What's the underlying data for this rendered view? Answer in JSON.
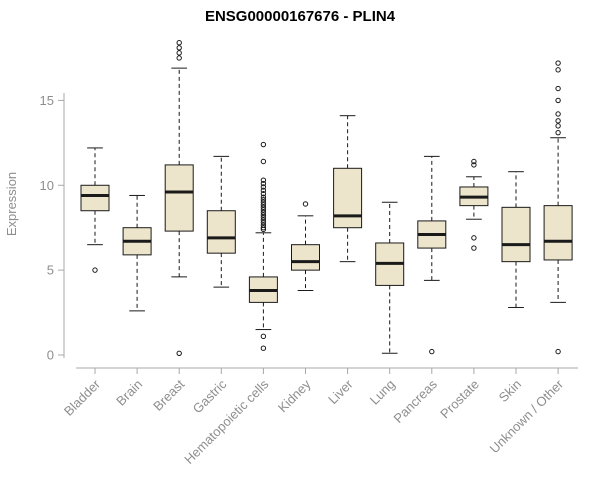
{
  "chart_data": {
    "type": "boxplot",
    "title": "ENSG00000167676 - PLIN4",
    "ylabel": "Expression",
    "ylim": [
      0,
      18.5
    ],
    "yticks": [
      0,
      5,
      10,
      15
    ],
    "grid": false,
    "legend": false,
    "colors": {
      "box_fill": "#EDE5CB",
      "box_stroke": "#1a1a1a",
      "axis": "#a8a8a8",
      "labels": "#8e8e8e",
      "title": "#000000"
    },
    "categories": [
      "Bladder",
      "Brain",
      "Breast",
      "Gastric",
      "Hematopoietic cells",
      "Kidney",
      "Liver",
      "Lung",
      "Pancreas",
      "Prostate",
      "Skin",
      "Unknown / Other"
    ],
    "series": [
      {
        "name": "Bladder",
        "whislo": 6.5,
        "q1": 8.5,
        "med": 9.4,
        "q3": 10.0,
        "whishi": 12.2,
        "fliers": [
          5.0
        ]
      },
      {
        "name": "Brain",
        "whislo": 2.6,
        "q1": 5.9,
        "med": 6.7,
        "q3": 7.5,
        "whishi": 9.4,
        "fliers": []
      },
      {
        "name": "Breast",
        "whislo": 4.6,
        "q1": 7.3,
        "med": 9.6,
        "q3": 11.2,
        "whishi": 16.9,
        "fliers": [
          18.4,
          18.1,
          17.8,
          17.5,
          0.1
        ]
      },
      {
        "name": "Gastric",
        "whislo": 4.0,
        "q1": 6.0,
        "med": 6.9,
        "q3": 8.5,
        "whishi": 11.7,
        "fliers": []
      },
      {
        "name": "Hematopoietic cells",
        "whislo": 1.5,
        "q1": 3.1,
        "med": 3.8,
        "q3": 4.6,
        "whishi": 7.2,
        "fliers": [
          12.4,
          11.4,
          10.3,
          10.1,
          9.9,
          9.7,
          9.5,
          9.3,
          9.15,
          9.0,
          8.85,
          8.7,
          8.55,
          8.4,
          8.25,
          8.1,
          7.95,
          7.8,
          7.65,
          7.5,
          7.4,
          1.1,
          0.4
        ]
      },
      {
        "name": "Kidney",
        "whislo": 3.8,
        "q1": 5.0,
        "med": 5.5,
        "q3": 6.5,
        "whishi": 8.2,
        "fliers": [
          8.9
        ]
      },
      {
        "name": "Liver",
        "whislo": 5.5,
        "q1": 7.5,
        "med": 8.2,
        "q3": 11.0,
        "whishi": 14.1,
        "fliers": []
      },
      {
        "name": "Lung",
        "whislo": 0.1,
        "q1": 4.1,
        "med": 5.4,
        "q3": 6.6,
        "whishi": 9.0,
        "fliers": []
      },
      {
        "name": "Pancreas",
        "whislo": 4.4,
        "q1": 6.3,
        "med": 7.1,
        "q3": 7.9,
        "whishi": 11.7,
        "fliers": [
          0.2
        ]
      },
      {
        "name": "Prostate",
        "whislo": 8.0,
        "q1": 8.8,
        "med": 9.3,
        "q3": 9.9,
        "whishi": 10.5,
        "fliers": [
          11.4,
          11.2,
          6.9,
          6.3
        ]
      },
      {
        "name": "Skin",
        "whislo": 2.8,
        "q1": 5.5,
        "med": 6.5,
        "q3": 8.7,
        "whishi": 10.8,
        "fliers": []
      },
      {
        "name": "Unknown / Other",
        "whislo": 3.1,
        "q1": 5.6,
        "med": 6.7,
        "q3": 8.8,
        "whishi": 12.8,
        "fliers": [
          17.2,
          16.8,
          15.7,
          15.0,
          14.2,
          13.8,
          13.5,
          13.1,
          0.2
        ]
      }
    ]
  }
}
